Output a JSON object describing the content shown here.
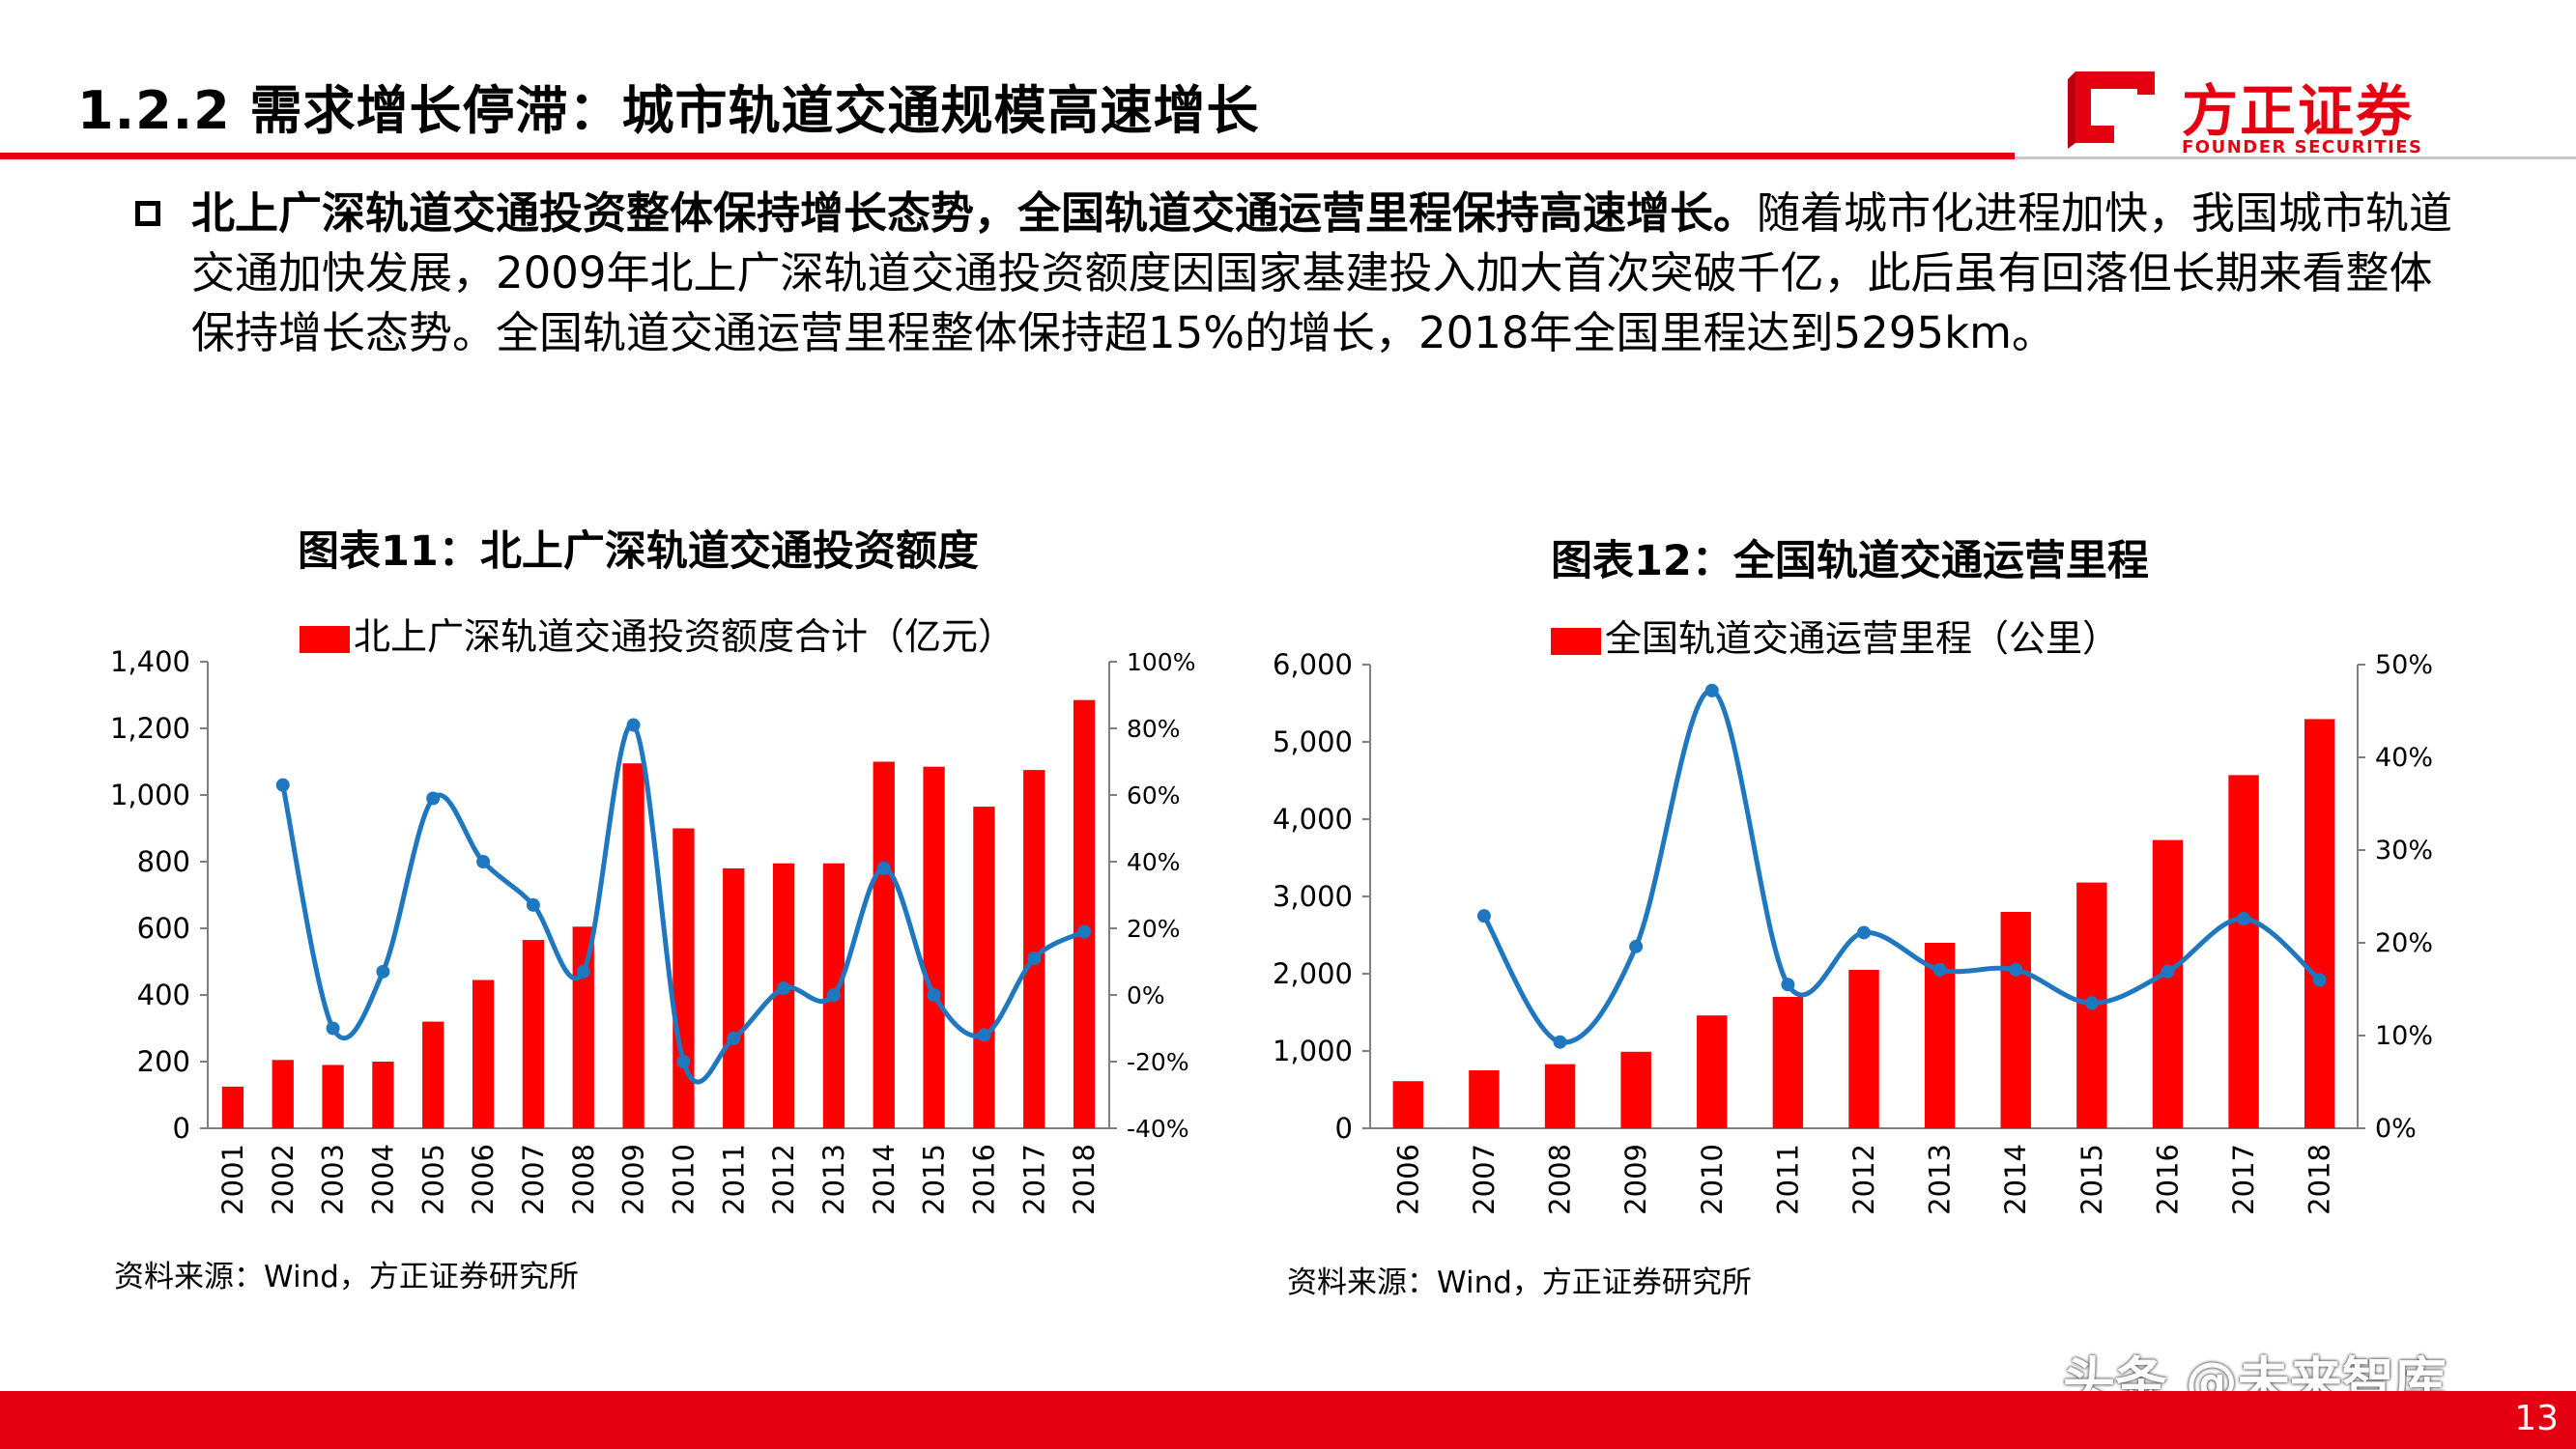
{
  "header": {
    "title": "1.2.2 需求增长停滞：城市轨道交通规模高速增长",
    "logo_cn": "方正证券",
    "logo_en": "FOUNDER SECURITIES"
  },
  "body": {
    "bold_text": "北上广深轨道交通投资整体保持增长态势，全国轨道交通运营里程保持高速增长。",
    "text": "随着城市化进程加快，我国城市轨道交通加快发展，2009年北上广深轨道交通投资额度因国家基建投入加大首次突破千亿，此后虽有回落但长期来看整体保持增长态势。全国轨道交通运营里程整体保持超15%的增长，2018年全国里程达到5295km。"
  },
  "chart1": {
    "title": "图表11：北上广深轨道交通投资额度",
    "source": "资料来源：Wind，方正证券研究所"
  },
  "chart2": {
    "title": "图表12：全国轨道交通运营里程",
    "source": "资料来源：Wind，方正证券研究所"
  },
  "footer": {
    "page": "13",
    "watermark": "头条 @未来智库"
  },
  "colors": {
    "bar": "#ff0000",
    "line": "#1f77c0",
    "brand": "#e40011"
  },
  "chart_data": [
    {
      "type": "bar",
      "categories": [
        "2001",
        "2002",
        "2003",
        "2004",
        "2005",
        "2006",
        "2007",
        "2008",
        "2009",
        "2010",
        "2011",
        "2012",
        "2013",
        "2014",
        "2015",
        "2016",
        "2017",
        "2018"
      ],
      "series": [
        {
          "name": "北上广深轨道交通投资额度合计（亿元）",
          "type": "bar",
          "axis": "left",
          "values": [
            125,
            205,
            190,
            200,
            320,
            445,
            565,
            605,
            1095,
            900,
            780,
            795,
            795,
            1100,
            1085,
            965,
            1075,
            1285
          ]
        },
        {
          "type": "line",
          "axis": "right",
          "values": [
            null,
            63,
            -10,
            7,
            59,
            40,
            27,
            7,
            81,
            -20,
            -13,
            2,
            0,
            38,
            0,
            -12,
            11,
            19
          ]
        }
      ],
      "yleft": {
        "ylim": [
          0,
          1400
        ],
        "ticks": [
          "0",
          "200",
          "400",
          "600",
          "800",
          "1,000",
          "1,200",
          "1,400"
        ]
      },
      "yright": {
        "ylim": [
          -40,
          100
        ],
        "ticks": [
          "-40%",
          "-20%",
          "0%",
          "20%",
          "40%",
          "60%",
          "80%",
          "100%"
        ]
      },
      "legend": "top"
    },
    {
      "type": "bar",
      "categories": [
        "2006",
        "2007",
        "2008",
        "2009",
        "2010",
        "2011",
        "2012",
        "2013",
        "2014",
        "2015",
        "2016",
        "2017",
        "2018"
      ],
      "series": [
        {
          "name": "全国轨道交通运营里程（公里）",
          "type": "bar",
          "axis": "left",
          "values": [
            610,
            750,
            830,
            990,
            1460,
            1700,
            2050,
            2400,
            2800,
            3180,
            3730,
            4570,
            5295
          ]
        },
        {
          "type": "line",
          "axis": "right",
          "values": [
            null,
            22.9,
            9.3,
            19.6,
            47.2,
            15.5,
            21.1,
            17.1,
            17.1,
            13.5,
            16.9,
            22.6,
            16.0
          ]
        }
      ],
      "yleft": {
        "ylim": [
          0,
          6000
        ],
        "ticks": [
          "0",
          "1,000",
          "2,000",
          "3,000",
          "4,000",
          "5,000",
          "6,000"
        ]
      },
      "yright": {
        "ylim": [
          0,
          50
        ],
        "ticks": [
          "0%",
          "10%",
          "20%",
          "30%",
          "40%",
          "50%"
        ]
      },
      "legend": "top"
    }
  ]
}
